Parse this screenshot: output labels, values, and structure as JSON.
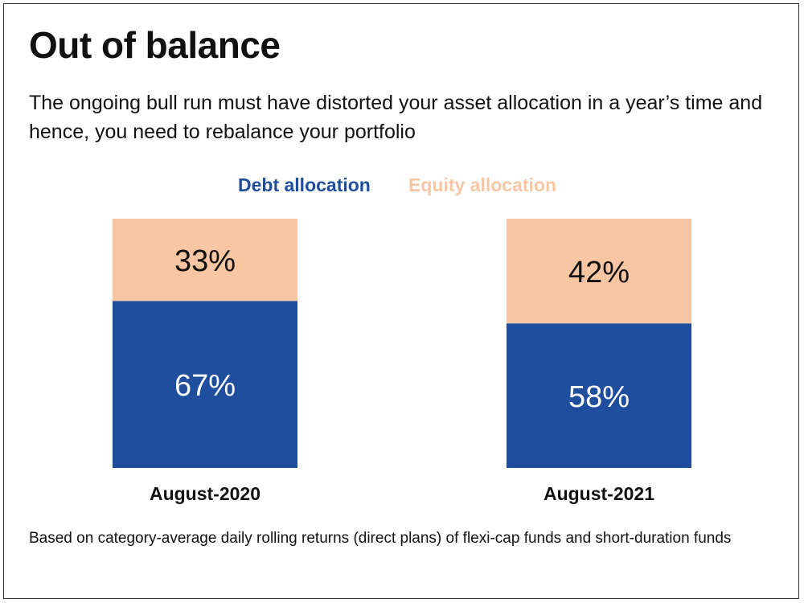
{
  "header": {
    "title": "Out of balance",
    "subtitle": "The ongoing bull run must have distorted your asset allocation in a year’s time and hence, you need to rebalance your portfolio"
  },
  "footnote": "Based on category-average daily rolling returns (direct plans) of flexi-cap funds and short-duration funds",
  "chart_data": {
    "type": "bar",
    "stacked": true,
    "categories": [
      "August-2020",
      "August-2021"
    ],
    "series": [
      {
        "name": "Debt allocation",
        "values": [
          67,
          58
        ],
        "labels": [
          "67%",
          "58%"
        ],
        "color": "#1f4e9e",
        "label_color": "#ffffff"
      },
      {
        "name": "Equity allocation",
        "values": [
          33,
          42
        ],
        "labels": [
          "33%",
          "42%"
        ],
        "color": "#f8c6a3",
        "label_color": "#111111"
      }
    ],
    "ylim": [
      0,
      100
    ],
    "grid": false,
    "legend_placement": "top-center"
  }
}
